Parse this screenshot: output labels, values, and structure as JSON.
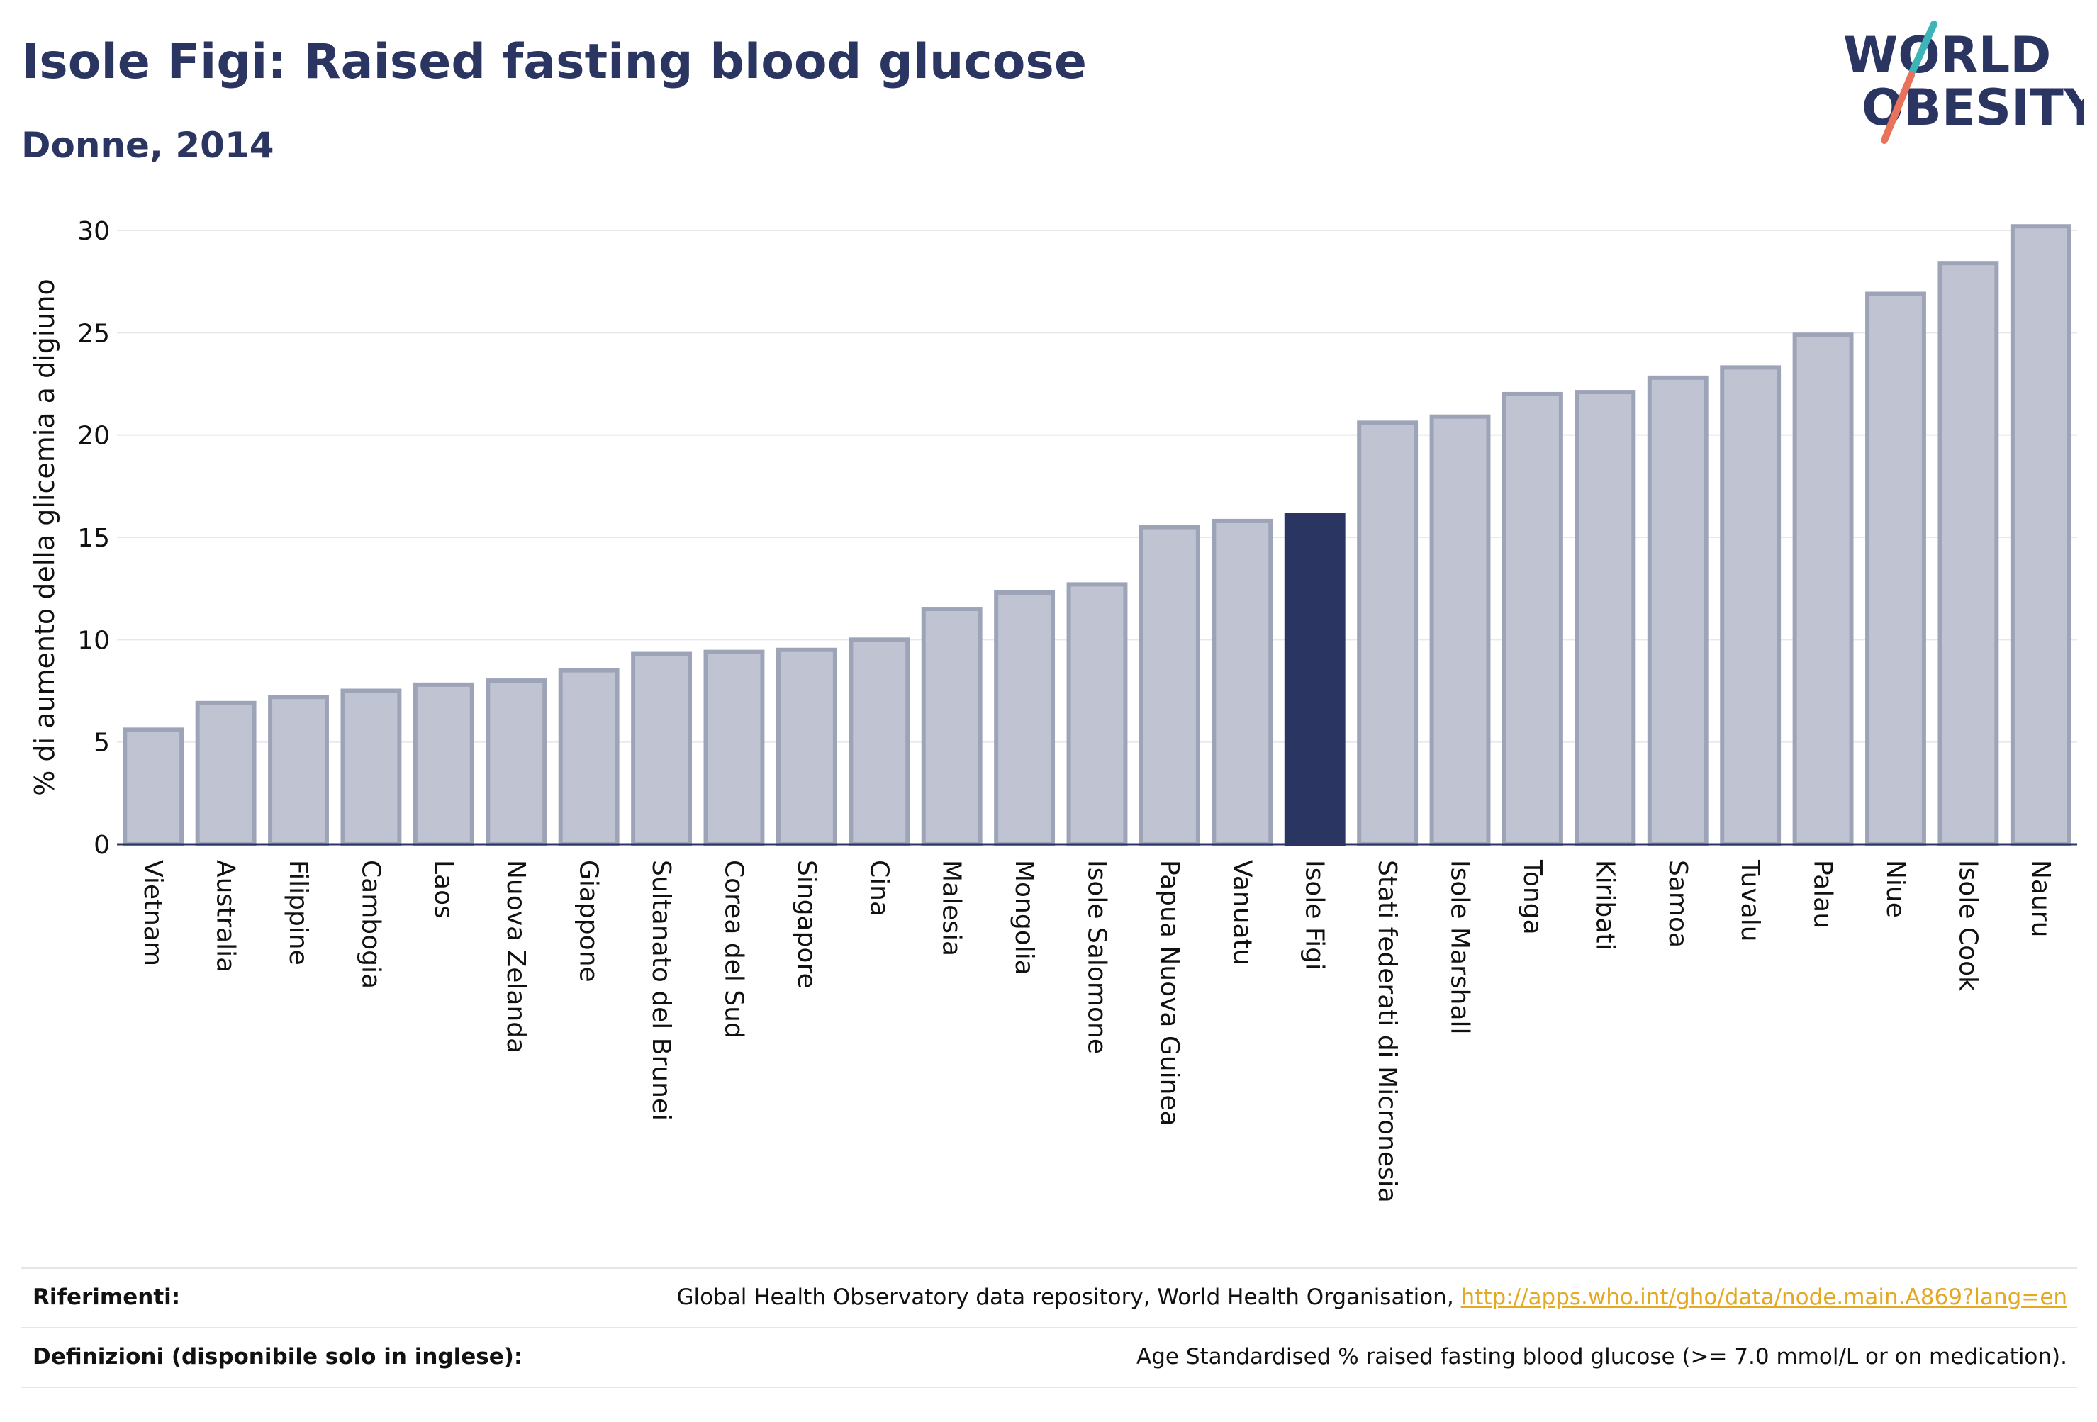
{
  "header": {
    "title": "Isole Figi: Raised fasting blood glucose",
    "subtitle": "Donne, 2014"
  },
  "logo": {
    "line1": "WORLD",
    "line2": "OBESITY",
    "slash_colors": [
      "#3db5b8",
      "#e8735a"
    ]
  },
  "colors": {
    "bar": "#c0c4d2",
    "bar_border": "#9ea4b8",
    "highlight": "#2b3561",
    "text": "#2b3561",
    "link": "#e5a823"
  },
  "chart_data": {
    "type": "bar",
    "ylabel": "% di aumento della glicemia a digiuno",
    "ylim": [
      0,
      30
    ],
    "yticks": [
      0,
      5,
      10,
      15,
      20,
      25,
      30
    ],
    "grid": true,
    "highlight": "Isole Figi",
    "categories": [
      "Vietnam",
      "Australia",
      "Filippine",
      "Cambogia",
      "Laos",
      "Nuova Zelanda",
      "Giappone",
      "Sultanato del Brunei",
      "Corea del Sud",
      "Singapore",
      "Cina",
      "Malesia",
      "Mongolia",
      "Isole Salomone",
      "Papua Nuova Guinea",
      "Vanuatu",
      "Isole Figi",
      "Stati federati di Micronesia",
      "Isole Marshall",
      "Tonga",
      "Kiribati",
      "Samoa",
      "Tuvalu",
      "Palau",
      "Niue",
      "Isole Cook",
      "Nauru"
    ],
    "values": [
      5.6,
      6.9,
      7.2,
      7.5,
      7.8,
      8.0,
      8.5,
      9.3,
      9.4,
      9.5,
      10.0,
      11.5,
      12.3,
      12.7,
      15.5,
      15.8,
      16.1,
      20.6,
      20.9,
      22.0,
      22.1,
      22.8,
      23.3,
      24.9,
      26.9,
      28.4,
      30.2
    ]
  },
  "references": {
    "sources_label": "Riferimenti:",
    "sources_text": "Global Health Observatory data repository, World Health Organisation, ",
    "sources_link": "http://apps.who.int/gho/data/node.main.A869?lang=en",
    "definitions_label": "Definizioni (disponibile solo in inglese):",
    "definitions_text": "Age Standardised % raised fasting blood glucose (>= 7.0 mmol/L or on medication)."
  }
}
